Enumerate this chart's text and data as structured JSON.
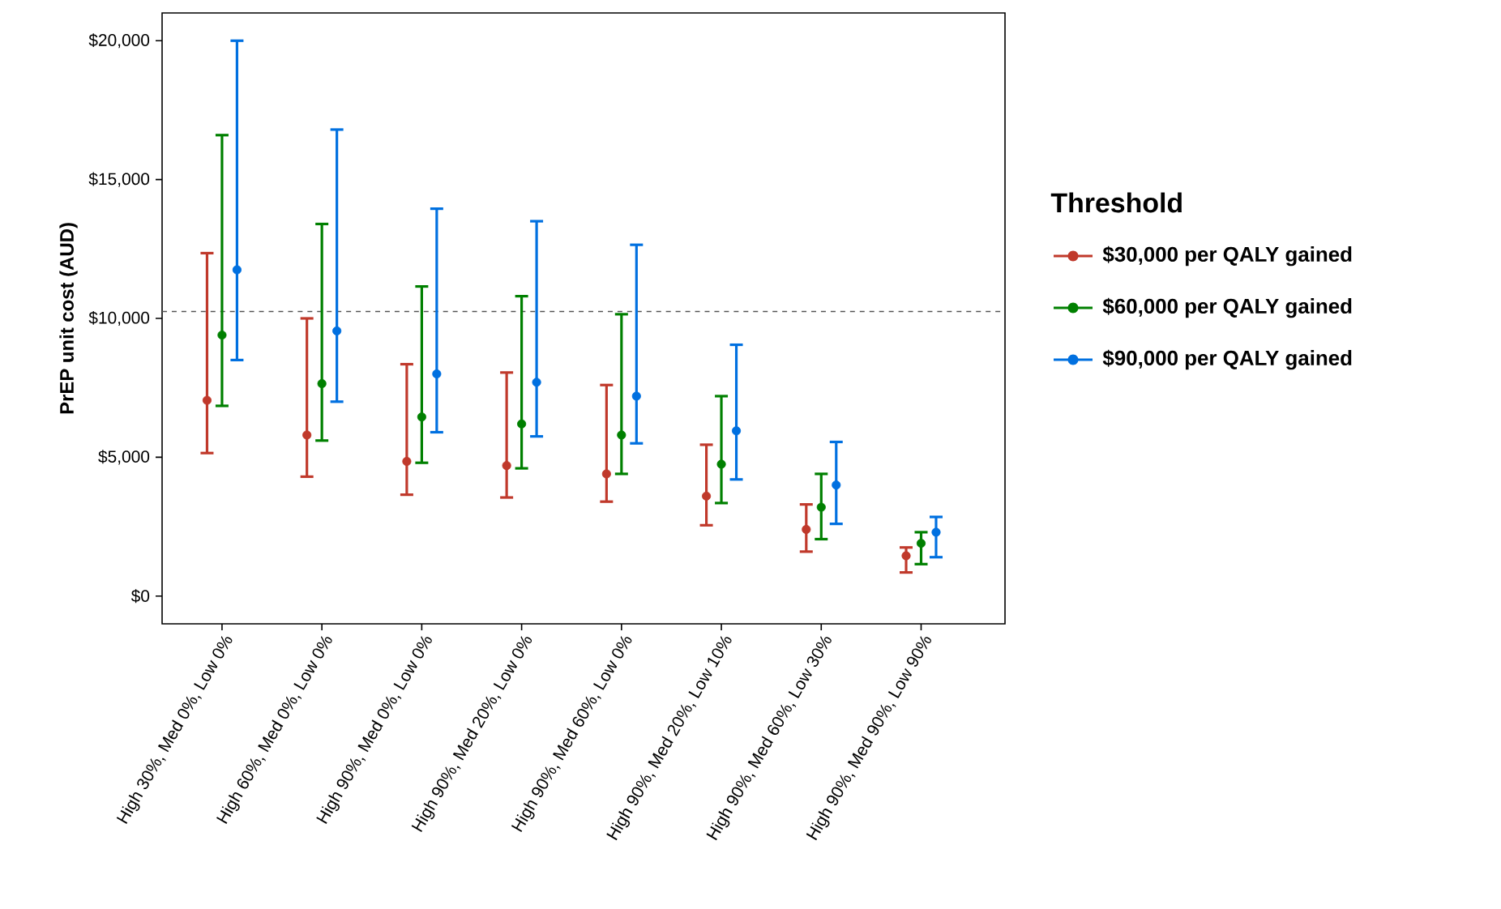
{
  "chart_data": {
    "type": "scatter",
    "ylabel": "PrEP unit cost (AUD)",
    "legend_title": "Threshold",
    "legend": "right",
    "marker": "circle",
    "grid": false,
    "categories": [
      "High 30%, Med 0%, Low 0%",
      "High 60%, Med 0%, Low 0%",
      "High 90%, Med 0%, Low 0%",
      "High 90%, Med 20%, Low 0%",
      "High 90%, Med 60%, Low 0%",
      "High 90%, Med 20%, Low 10%",
      "High 90%, Med 60%, Low 30%",
      "High 90%, Med 90%, Low 90%"
    ],
    "ylim": [
      -1000,
      21000
    ],
    "yticks": [
      {
        "value": 0,
        "label": "$0"
      },
      {
        "value": 5000,
        "label": "$5,000"
      },
      {
        "value": 10000,
        "label": "$10,000"
      },
      {
        "value": 15000,
        "label": "$15,000"
      },
      {
        "value": 20000,
        "label": "$20,000"
      }
    ],
    "ref_lines": [
      {
        "axis": "y",
        "value": 10250,
        "color": "#555555",
        "line_style": "dashed"
      }
    ],
    "series": [
      {
        "name": "$30,000 per QALY gained",
        "color": "#c0392b",
        "values": [
          7050,
          5800,
          4850,
          4700,
          4400,
          3600,
          2400,
          1450
        ],
        "errors": [
          [
            5150,
            12350
          ],
          [
            4300,
            10000
          ],
          [
            3650,
            8350
          ],
          [
            3550,
            8050
          ],
          [
            3400,
            7600
          ],
          [
            2550,
            5450
          ],
          [
            1600,
            3300
          ],
          [
            850,
            1750
          ]
        ]
      },
      {
        "name": "$60,000 per QALY gained",
        "color": "#008000",
        "values": [
          9400,
          7650,
          6450,
          6200,
          5800,
          4750,
          3200,
          1900
        ],
        "errors": [
          [
            6850,
            16600
          ],
          [
            5600,
            13400
          ],
          [
            4800,
            11150
          ],
          [
            4600,
            10800
          ],
          [
            4400,
            10150
          ],
          [
            3350,
            7200
          ],
          [
            2050,
            4400
          ],
          [
            1150,
            2300
          ]
        ]
      },
      {
        "name": "$90,000 per QALY gained",
        "color": "#0070e0",
        "values": [
          11750,
          9550,
          8000,
          7700,
          7200,
          5950,
          4000,
          2300
        ],
        "errors": [
          [
            8500,
            20000
          ],
          [
            7000,
            16800
          ],
          [
            5900,
            13950
          ],
          [
            5750,
            13500
          ],
          [
            5500,
            12650
          ],
          [
            4200,
            9050
          ],
          [
            2600,
            5550
          ],
          [
            1400,
            2850
          ]
        ]
      }
    ]
  }
}
